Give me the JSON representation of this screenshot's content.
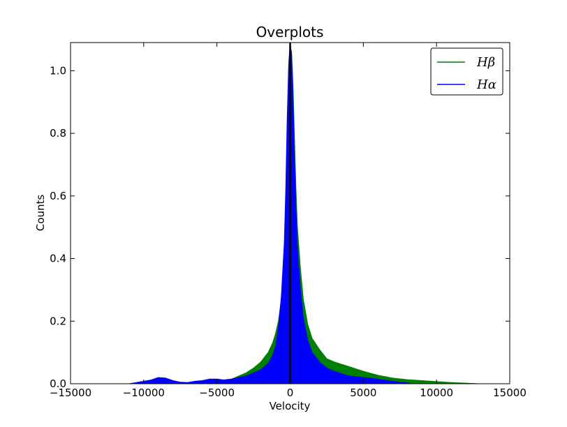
{
  "chart_data": {
    "type": "area",
    "title": "Overplots",
    "xlabel": "Velocity",
    "ylabel": "Counts",
    "xlim": [
      -15000,
      15000
    ],
    "ylim": [
      0,
      1.09
    ],
    "xticks": [
      -15000,
      -10000,
      -5000,
      0,
      5000,
      10000,
      15000
    ],
    "xtick_labels": [
      "−15000",
      "−10000",
      "−5000",
      "0",
      "5000",
      "10000",
      "15000"
    ],
    "yticks": [
      0.0,
      0.2,
      0.4,
      0.6,
      0.8,
      1.0
    ],
    "ytick_labels": [
      "0.0",
      "0.2",
      "0.4",
      "0.6",
      "0.8",
      "1.0"
    ],
    "grid": false,
    "legend_position": "top-right",
    "reference_line_x": 0,
    "series": [
      {
        "name": "Hβ",
        "color": "#008000",
        "x": [
          -7000,
          -6000,
          -5000,
          -4000,
          -3500,
          -3000,
          -2500,
          -2000,
          -1500,
          -1200,
          -1000,
          -800,
          -600,
          -400,
          -300,
          -200,
          -100,
          0,
          100,
          200,
          300,
          400,
          500,
          700,
          900,
          1200,
          1500,
          2000,
          2500,
          3000,
          4000,
          5000,
          6000,
          7000,
          8000,
          9000,
          10000,
          11000,
          12000,
          12900
        ],
        "y": [
          0.0,
          0.005,
          0.01,
          0.015,
          0.025,
          0.035,
          0.05,
          0.07,
          0.1,
          0.13,
          0.16,
          0.2,
          0.27,
          0.4,
          0.55,
          0.78,
          1.0,
          1.08,
          1.06,
          0.95,
          0.78,
          0.62,
          0.5,
          0.37,
          0.27,
          0.19,
          0.145,
          0.11,
          0.08,
          0.07,
          0.055,
          0.04,
          0.027,
          0.018,
          0.013,
          0.01,
          0.007,
          0.004,
          0.002,
          0.0
        ]
      },
      {
        "name": "Hα",
        "color": "#0000ff",
        "x": [
          -11000,
          -10500,
          -10000,
          -9500,
          -9000,
          -8500,
          -8000,
          -7500,
          -7000,
          -6500,
          -6000,
          -5500,
          -5000,
          -4500,
          -4000,
          -3500,
          -3000,
          -2500,
          -2000,
          -1500,
          -1200,
          -1000,
          -800,
          -600,
          -400,
          -300,
          -200,
          -100,
          0,
          100,
          200,
          300,
          400,
          500,
          700,
          900,
          1200,
          1500,
          2000,
          2500,
          3000,
          4000,
          5000,
          6000,
          7000,
          7500,
          8000,
          8200
        ],
        "y": [
          0.0,
          0.004,
          0.008,
          0.012,
          0.02,
          0.018,
          0.01,
          0.005,
          0.004,
          0.008,
          0.01,
          0.015,
          0.015,
          0.012,
          0.015,
          0.02,
          0.025,
          0.035,
          0.045,
          0.065,
          0.09,
          0.12,
          0.18,
          0.28,
          0.45,
          0.62,
          0.85,
          1.02,
          1.09,
          1.05,
          0.9,
          0.72,
          0.55,
          0.43,
          0.3,
          0.21,
          0.14,
          0.1,
          0.07,
          0.05,
          0.04,
          0.025,
          0.02,
          0.015,
          0.008,
          0.005,
          0.003,
          0.0
        ]
      }
    ]
  }
}
